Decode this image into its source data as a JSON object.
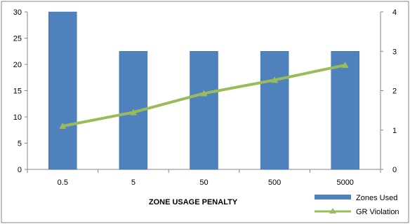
{
  "chart_data": {
    "type": "bar",
    "categories": [
      "0.5",
      "5",
      "50",
      "500",
      "5000"
    ],
    "xlabel": "ZONE USAGE PENALTY",
    "series": [
      {
        "name": "Zones Used",
        "type": "bar",
        "axis": "left",
        "values": [
          30,
          22.5,
          22.5,
          22.5,
          22.5
        ]
      },
      {
        "name": "GR Violation",
        "type": "line",
        "axis": "right",
        "values": [
          1.1,
          1.45,
          1.93,
          2.27,
          2.65
        ]
      }
    ],
    "y_left": {
      "ylim": [
        0,
        30
      ],
      "ticks": [
        "0",
        "5",
        "10",
        "15",
        "20",
        "25",
        "30"
      ]
    },
    "y_right": {
      "ylim": [
        0,
        4
      ],
      "ticks": [
        "0",
        "1",
        "2",
        "3",
        "4"
      ]
    },
    "grid": false,
    "legend": "bottom-right",
    "colors": {
      "bar": "#4F81BD",
      "bar_edge": "#3A6EA8",
      "line": "#9BBB59",
      "axis": "#868686"
    }
  }
}
